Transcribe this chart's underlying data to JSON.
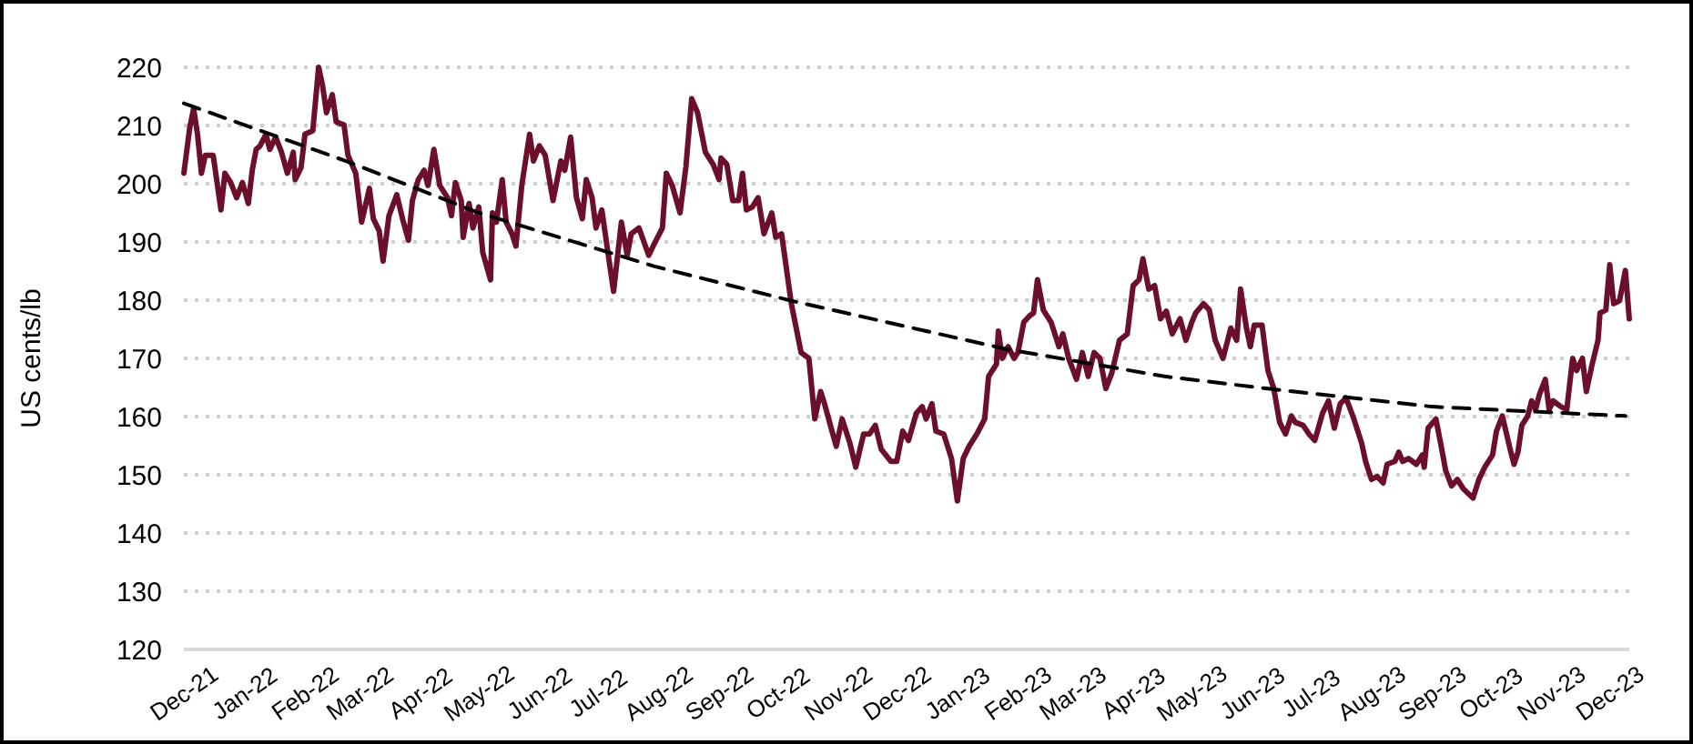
{
  "chart_data": {
    "type": "line",
    "ylabel": "US cents/lb",
    "xlim": [
      "2021-12-01",
      "2023-12-11"
    ],
    "ylim": [
      120,
      220
    ],
    "yticks": [
      120,
      130,
      140,
      150,
      160,
      170,
      180,
      190,
      200,
      210,
      220
    ],
    "xticks": [
      {
        "value": "2021-12-01",
        "label": "Dec-21"
      },
      {
        "value": "2022-01-01",
        "label": "Jan-22"
      },
      {
        "value": "2022-02-01",
        "label": "Feb-22"
      },
      {
        "value": "2022-03-01",
        "label": "Mar-22"
      },
      {
        "value": "2022-04-01",
        "label": "Apr-22"
      },
      {
        "value": "2022-05-01",
        "label": "May-22"
      },
      {
        "value": "2022-06-01",
        "label": "Jun-22"
      },
      {
        "value": "2022-07-01",
        "label": "Jul-22"
      },
      {
        "value": "2022-08-01",
        "label": "Aug-22"
      },
      {
        "value": "2022-09-01",
        "label": "Sep-22"
      },
      {
        "value": "2022-10-01",
        "label": "Oct-22"
      },
      {
        "value": "2022-11-01",
        "label": "Nov-22"
      },
      {
        "value": "2022-12-01",
        "label": "Dec-22"
      },
      {
        "value": "2023-01-01",
        "label": "Jan-23"
      },
      {
        "value": "2023-02-01",
        "label": "Feb-23"
      },
      {
        "value": "2023-03-01",
        "label": "Mar-23"
      },
      {
        "value": "2023-04-01",
        "label": "Apr-23"
      },
      {
        "value": "2023-05-01",
        "label": "May-23"
      },
      {
        "value": "2023-06-01",
        "label": "Jun-23"
      },
      {
        "value": "2023-07-01",
        "label": "Jul-23"
      },
      {
        "value": "2023-08-01",
        "label": "Aug-23"
      },
      {
        "value": "2023-09-01",
        "label": "Sep-23"
      },
      {
        "value": "2023-10-01",
        "label": "Oct-23"
      },
      {
        "value": "2023-11-01",
        "label": "Nov-23"
      },
      {
        "value": "2023-12-01",
        "label": "Dec-23"
      }
    ],
    "grid": "y",
    "series": [
      {
        "color": "#6b0f2a",
        "line_style": "solid",
        "x": [
          "2021-12-01",
          "2021-12-04",
          "2021-12-06",
          "2021-12-08",
          "2021-12-10",
          "2021-12-12",
          "2021-12-16",
          "2021-12-20",
          "2021-12-22",
          "2021-12-25",
          "2021-12-28",
          "2021-12-31",
          "2022-01-03",
          "2022-01-05",
          "2022-01-07",
          "2022-01-09",
          "2022-01-12",
          "2022-01-14",
          "2022-01-17",
          "2022-01-20",
          "2022-01-23",
          "2022-01-26",
          "2022-01-27",
          "2022-01-30",
          "2022-02-01",
          "2022-02-05",
          "2022-02-08",
          "2022-02-10",
          "2022-02-12",
          "2022-02-15",
          "2022-02-17",
          "2022-02-21",
          "2022-02-23",
          "2022-02-27",
          "2022-03-02",
          "2022-03-06",
          "2022-03-08",
          "2022-03-11",
          "2022-03-13",
          "2022-03-16",
          "2022-03-20",
          "2022-03-23",
          "2022-03-26",
          "2022-03-28",
          "2022-03-31",
          "2022-04-03",
          "2022-04-05",
          "2022-04-08",
          "2022-04-11",
          "2022-04-15",
          "2022-04-17",
          "2022-04-19",
          "2022-04-22",
          "2022-04-23",
          "2022-04-26",
          "2022-04-28",
          "2022-05-01",
          "2022-05-03",
          "2022-05-07",
          "2022-05-08",
          "2022-05-10",
          "2022-05-13",
          "2022-05-15",
          "2022-05-18",
          "2022-05-20",
          "2022-05-23",
          "2022-05-27",
          "2022-05-29",
          "2022-06-01",
          "2022-06-04",
          "2022-06-08",
          "2022-06-12",
          "2022-06-14",
          "2022-06-17",
          "2022-06-20",
          "2022-06-23",
          "2022-06-25",
          "2022-06-28",
          "2022-06-30",
          "2022-07-03",
          "2022-07-07",
          "2022-07-09",
          "2022-07-13",
          "2022-07-16",
          "2022-07-18",
          "2022-07-22",
          "2022-07-27",
          "2022-07-30",
          "2022-08-03",
          "2022-08-05",
          "2022-08-08",
          "2022-08-12",
          "2022-08-15",
          "2022-08-18",
          "2022-08-21",
          "2022-08-25",
          "2022-08-29",
          "2022-09-01",
          "2022-09-02",
          "2022-09-05",
          "2022-09-08",
          "2022-09-11",
          "2022-09-13",
          "2022-09-15",
          "2022-09-18",
          "2022-09-21",
          "2022-09-24",
          "2022-09-28",
          "2022-09-30",
          "2022-10-03",
          "2022-10-08",
          "2022-10-13",
          "2022-10-17",
          "2022-10-20",
          "2022-10-23",
          "2022-10-25",
          "2022-10-28",
          "2022-10-31",
          "2022-11-03",
          "2022-11-07",
          "2022-11-10",
          "2022-11-14",
          "2022-11-17",
          "2022-11-20",
          "2022-11-23",
          "2022-11-28",
          "2022-12-01",
          "2022-12-04",
          "2022-12-07",
          "2022-12-11",
          "2022-12-14",
          "2022-12-16",
          "2022-12-19",
          "2022-12-21",
          "2022-12-25",
          "2022-12-29",
          "2023-01-01",
          "2023-01-04",
          "2023-01-07",
          "2023-01-11",
          "2023-01-15",
          "2023-01-17",
          "2023-01-21",
          "2023-01-22",
          "2023-01-24",
          "2023-01-27",
          "2023-01-30",
          "2023-02-01",
          "2023-02-04",
          "2023-02-07",
          "2023-02-09",
          "2023-02-11",
          "2023-02-14",
          "2023-02-18",
          "2023-02-22",
          "2023-02-24",
          "2023-02-27",
          "2023-03-03",
          "2023-03-06",
          "2023-03-09",
          "2023-03-12",
          "2023-03-15",
          "2023-03-18",
          "2023-03-21",
          "2023-03-25",
          "2023-03-29",
          "2023-04-01",
          "2023-04-04",
          "2023-04-06",
          "2023-04-09",
          "2023-04-12",
          "2023-04-15",
          "2023-04-18",
          "2023-04-21",
          "2023-04-25",
          "2023-04-28",
          "2023-05-01",
          "2023-05-03",
          "2023-05-07",
          "2023-05-10",
          "2023-05-13",
          "2023-05-17",
          "2023-05-21",
          "2023-05-24",
          "2023-05-26",
          "2023-05-29",
          "2023-05-31",
          "2023-06-02",
          "2023-06-06",
          "2023-06-09",
          "2023-06-12",
          "2023-06-15",
          "2023-06-18",
          "2023-06-21",
          "2023-06-23",
          "2023-06-27",
          "2023-06-30",
          "2023-07-03",
          "2023-07-07",
          "2023-07-10",
          "2023-07-13",
          "2023-07-16",
          "2023-07-19",
          "2023-07-23",
          "2023-07-27",
          "2023-07-29",
          "2023-08-01",
          "2023-08-04",
          "2023-08-07",
          "2023-08-09",
          "2023-08-13",
          "2023-08-15",
          "2023-08-17",
          "2023-08-20",
          "2023-08-24",
          "2023-08-27",
          "2023-08-28",
          "2023-08-30",
          "2023-09-03",
          "2023-09-06",
          "2023-09-08",
          "2023-09-11",
          "2023-09-14",
          "2023-09-17",
          "2023-09-22",
          "2023-09-25",
          "2023-09-28",
          "2023-10-02",
          "2023-10-04",
          "2023-10-07",
          "2023-10-11",
          "2023-10-13",
          "2023-10-15",
          "2023-10-17",
          "2023-10-20",
          "2023-10-22",
          "2023-10-24",
          "2023-10-26",
          "2023-10-29",
          "2023-10-31",
          "2023-11-02",
          "2023-11-06",
          "2023-11-09",
          "2023-11-12",
          "2023-11-14",
          "2023-11-17",
          "2023-11-19",
          "2023-11-22",
          "2023-11-25",
          "2023-11-26",
          "2023-11-29",
          "2023-12-01",
          "2023-12-03",
          "2023-12-06",
          "2023-12-09",
          "2023-12-11"
        ],
        "values": [
          201.8,
          209.6,
          212.9,
          208.5,
          201.8,
          204.9,
          204.9,
          195.5,
          201.8,
          200.2,
          197.6,
          200.2,
          196.6,
          202.3,
          205.9,
          206.5,
          208.5,
          205.9,
          208,
          205.4,
          201.8,
          205.4,
          200.7,
          202.8,
          208.5,
          209.1,
          220,
          216.9,
          212.2,
          215.3,
          210.6,
          210.1,
          204.9,
          201.8,
          193.4,
          199.2,
          194,
          191.9,
          186.7,
          194.5,
          198.1,
          193.9,
          190.3,
          197.1,
          200.7,
          202.3,
          199.7,
          205.9,
          199.7,
          197.6,
          194.5,
          200.2,
          197.1,
          190.8,
          196.6,
          192.4,
          196,
          188.2,
          183.5,
          195,
          193.4,
          200.7,
          193.4,
          191.4,
          189.3,
          199.7,
          208.5,
          203.9,
          206.5,
          204.9,
          197.1,
          203.9,
          202.3,
          208,
          197.6,
          194,
          200.7,
          197.6,
          192.4,
          195.5,
          186.1,
          181.5,
          193.4,
          187.7,
          191.4,
          192.4,
          187.7,
          189.8,
          192.4,
          201.8,
          199.7,
          195,
          202.8,
          214.6,
          212.2,
          205.4,
          203.3,
          200.7,
          204.4,
          203.3,
          197.1,
          197.1,
          201.8,
          195.5,
          196,
          197.6,
          191.4,
          195,
          190.8,
          191.4,
          179.4,
          171,
          170,
          159.6,
          164.3,
          162.2,
          158.5,
          154.9,
          159.6,
          155.4,
          151.3,
          157,
          157,
          158.5,
          154.4,
          152.3,
          152.3,
          157.5,
          155.9,
          160.6,
          161.7,
          159.6,
          162.2,
          157.5,
          157,
          152.8,
          145.5,
          152.8,
          154.9,
          157,
          159.6,
          166.9,
          169,
          174.7,
          170,
          172,
          170,
          171,
          176.2,
          177.3,
          177.8,
          183.5,
          178.3,
          176.2,
          172,
          174.2,
          170,
          166.4,
          171,
          166.9,
          171,
          170,
          164.8,
          167.4,
          173.1,
          174.2,
          182.5,
          183.5,
          187.1,
          181.9,
          182.5,
          176.8,
          178.1,
          174.2,
          176.8,
          173.1,
          176.2,
          177.8,
          179.4,
          178.3,
          173.1,
          170,
          175.2,
          173.1,
          181.9,
          175.2,
          172,
          175.7,
          175.7,
          167.9,
          164.8,
          159,
          157,
          160.1,
          159,
          158.5,
          157,
          155.9,
          160.6,
          162.7,
          158,
          162.2,
          163.2,
          159.6,
          155.4,
          152.3,
          149.2,
          149.7,
          148.6,
          151.8,
          152.3,
          153.9,
          152.3,
          152.8,
          151.8,
          153.4,
          151.3,
          158,
          159.6,
          154.4,
          150.7,
          148.1,
          149.2,
          147.6,
          146,
          149.2,
          151.3,
          153.4,
          157.5,
          160.1,
          154.4,
          151.8,
          153.9,
          158.5,
          160.1,
          162.7,
          161.2,
          163.8,
          166.4,
          161.2,
          162.7,
          161.7,
          161.2,
          170,
          167.9,
          170,
          164.3,
          169,
          173.1,
          177.8,
          178.3,
          186.1,
          179.4,
          179.9,
          185.1,
          176.8
        ]
      },
      {
        "color": "#000000",
        "line_style": "dashed",
        "x": [
          "2021-12-01",
          "2022-02-22",
          "2022-05-01",
          "2022-07-30",
          "2022-10-08",
          "2023-01-26",
          "2023-04-17",
          "2023-06-09",
          "2023-09-01",
          "2023-12-09"
        ],
        "values": [
          213.8,
          203.9,
          195,
          185.8,
          179.9,
          171.6,
          166.9,
          164.8,
          161.7,
          160.1
        ]
      }
    ]
  }
}
